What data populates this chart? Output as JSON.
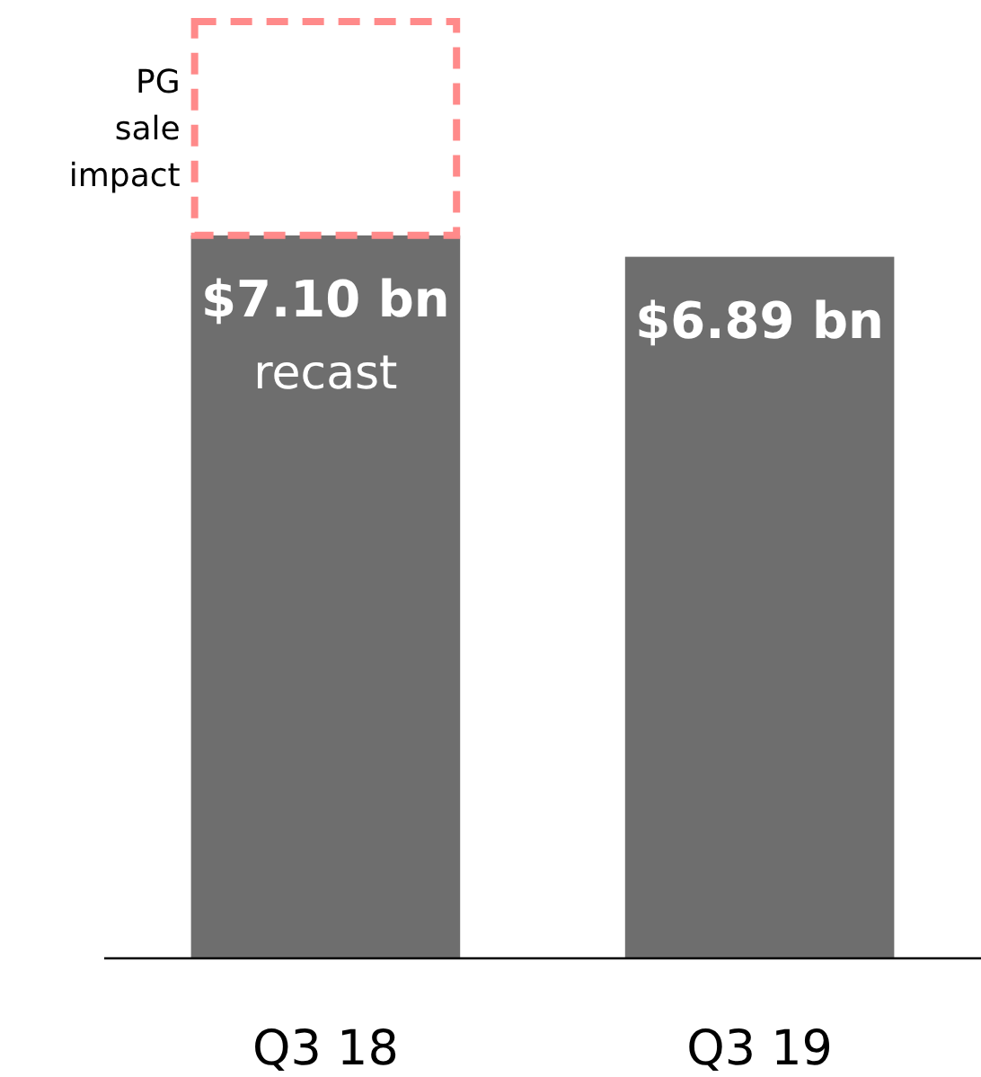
{
  "chart_data": {
    "type": "bar",
    "stacked": true,
    "categories": [
      "Q3 18",
      "Q3 19"
    ],
    "series": [
      {
        "color": "#6e6e6e",
        "values": [
          7.1,
          6.89
        ],
        "value_labels": [
          "$7.10 bn",
          "$6.89 bn"
        ]
      },
      {
        "name": "PG sale impact",
        "color": "#ff8a8a",
        "line_style": "dashed",
        "values": [
          2.1,
          null
        ]
      }
    ],
    "annotations": [
      "recast"
    ]
  }
}
